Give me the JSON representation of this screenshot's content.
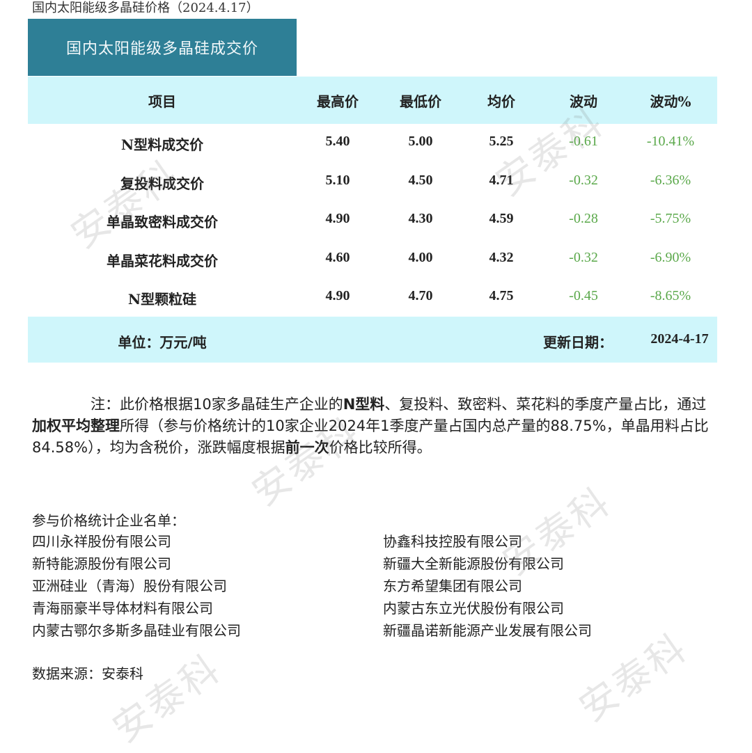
{
  "doc_title": "国内太阳能级多晶硅价格（2024.4.17）",
  "table": {
    "title": "国内太阳能级多晶硅成交价",
    "headers": [
      "项目",
      "最高价",
      "最低价",
      "均价",
      "波动",
      "波动%"
    ],
    "rows": [
      [
        "N型料成交价",
        "5.40",
        "5.00",
        "5.25",
        "-0.61",
        "-10.41%"
      ],
      [
        "复投料成交价",
        "5.10",
        "4.50",
        "4.71",
        "-0.32",
        "-6.36%"
      ],
      [
        "单晶致密料成交价",
        "4.90",
        "4.30",
        "4.59",
        "-0.28",
        "-5.75%"
      ],
      [
        "单晶菜花料成交价",
        "4.60",
        "4.00",
        "4.32",
        "-0.32",
        "-6.90%"
      ],
      [
        "N型颗粒硅",
        "4.90",
        "4.70",
        "4.75",
        "-0.45",
        "-8.65%"
      ]
    ],
    "unit": "单位：万元/吨",
    "update_label": "更新日期：",
    "update_date": "2024-4-17",
    "colors": {
      "header": "#2e7f96",
      "band": "#cff6fb",
      "change": "#5aa84a"
    }
  },
  "note": {
    "p1": "注：此价格根据10家多晶硅生产企业的",
    "b1": "N型料",
    "p2": "、复投料、致密料、菜花料的季度产量占比，通过",
    "b2": "加权平均整理",
    "p3": "所得（参与价格统计的10家企业2024年1季度产量占国内总产量的88.75%，单晶用料占比84.58%），均为含税价，涨跌幅度根据",
    "b3": "前一次",
    "p4": "价格比较所得。"
  },
  "companies": {
    "heading": "参与价格统计企业名单：",
    "left": [
      "四川永祥股份有限公司",
      "新特能源股份有限公司",
      "亚洲硅业（青海）股份有限公司",
      "青海丽豪半导体材料有限公司",
      "内蒙古鄂尔多斯多晶硅业有限公司"
    ],
    "right": [
      "协鑫科技控股有限公司",
      "新疆大全新能源股份有限公司",
      "东方希望集团有限公司",
      "内蒙古东立光伏股份有限公司",
      "新疆晶诺新能源产业发展有限公司"
    ]
  },
  "source": "数据来源：安泰科",
  "watermark": "安泰科"
}
